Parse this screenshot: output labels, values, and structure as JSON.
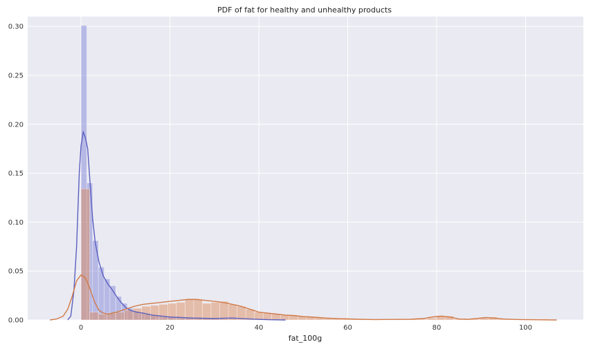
{
  "chart_data": {
    "type": "bar",
    "title": "PDF of fat for healthy and unhealthy products",
    "xlabel": "fat_100g",
    "ylabel": "",
    "xlim": [
      -12,
      113
    ],
    "ylim": [
      0,
      0.31
    ],
    "x_ticks": [
      0,
      20,
      40,
      60,
      80,
      100
    ],
    "y_ticks": [
      0.0,
      0.05,
      0.1,
      0.15,
      0.2,
      0.25,
      0.3
    ],
    "x_tick_labels": [
      "0",
      "20",
      "40",
      "60",
      "80",
      "100"
    ],
    "y_tick_labels": [
      "0.00",
      "0.05",
      "0.10",
      "0.15",
      "0.20",
      "0.25",
      "0.30"
    ],
    "grid": true,
    "background": "#eaeaf2",
    "series": [
      {
        "color": "#7b7fd4",
        "line_color": "#5a5fbf",
        "bin_width": 1.3,
        "hist": [
          [
            0,
            0.301
          ],
          [
            1.3,
            0.14
          ],
          [
            2.6,
            0.081
          ],
          [
            3.9,
            0.054
          ],
          [
            5.2,
            0.042
          ],
          [
            6.5,
            0.035
          ],
          [
            7.8,
            0.024
          ],
          [
            9.1,
            0.017
          ],
          [
            10.4,
            0.012
          ],
          [
            11.7,
            0.009
          ],
          [
            13.0,
            0.007
          ],
          [
            14.3,
            0.006
          ],
          [
            15.6,
            0.005
          ],
          [
            16.9,
            0.004
          ],
          [
            18.2,
            0.003
          ],
          [
            19.5,
            0.003
          ],
          [
            20.8,
            0.003
          ],
          [
            22.1,
            0.002
          ],
          [
            23.4,
            0.002
          ],
          [
            24.7,
            0.002
          ],
          [
            26.0,
            0.002
          ],
          [
            27.3,
            0.002
          ],
          [
            28.6,
            0.002
          ],
          [
            29.9,
            0.001
          ],
          [
            31.2,
            0.001
          ],
          [
            32.5,
            0.001
          ],
          [
            33.8,
            0.001
          ]
        ],
        "kde": [
          [
            -3,
            0.0
          ],
          [
            -2.3,
            0.004
          ],
          [
            -1.6,
            0.03
          ],
          [
            -1.0,
            0.075
          ],
          [
            -0.4,
            0.15
          ],
          [
            0,
            0.178
          ],
          [
            0.5,
            0.192
          ],
          [
            1.0,
            0.186
          ],
          [
            1.5,
            0.175
          ],
          [
            2.0,
            0.142
          ],
          [
            2.6,
            0.104
          ],
          [
            3.2,
            0.079
          ],
          [
            4.0,
            0.06
          ],
          [
            5.0,
            0.045
          ],
          [
            6.0,
            0.037
          ],
          [
            7.0,
            0.031
          ],
          [
            8.0,
            0.024
          ],
          [
            9.0,
            0.018
          ],
          [
            10.0,
            0.013
          ],
          [
            11.0,
            0.01
          ],
          [
            12.5,
            0.008
          ],
          [
            14.0,
            0.007
          ],
          [
            16.0,
            0.005
          ],
          [
            18.0,
            0.004
          ],
          [
            20.0,
            0.003
          ],
          [
            25.0,
            0.002
          ],
          [
            30.0,
            0.0015
          ],
          [
            34.0,
            0.002
          ],
          [
            38.0,
            0.001
          ],
          [
            42.0,
            0.0003
          ],
          [
            46.0,
            0.0
          ]
        ]
      },
      {
        "color": "#dd8452",
        "line_color": "#d07a48",
        "bin_width": 1.95,
        "hist": [
          [
            0,
            0.134
          ],
          [
            1.95,
            0.008
          ],
          [
            3.9,
            0.006
          ],
          [
            5.85,
            0.007
          ],
          [
            7.8,
            0.008
          ],
          [
            9.75,
            0.01
          ],
          [
            11.7,
            0.012
          ],
          [
            13.65,
            0.014
          ],
          [
            15.6,
            0.015
          ],
          [
            17.55,
            0.016
          ],
          [
            19.5,
            0.017
          ],
          [
            21.45,
            0.018
          ],
          [
            23.4,
            0.021
          ],
          [
            25.35,
            0.021
          ],
          [
            27.3,
            0.017
          ],
          [
            29.25,
            0.018
          ],
          [
            31.2,
            0.019
          ],
          [
            33.15,
            0.016
          ],
          [
            35.1,
            0.014
          ],
          [
            37.05,
            0.011
          ],
          [
            39.0,
            0.008
          ],
          [
            40.95,
            0.007
          ],
          [
            42.9,
            0.006
          ],
          [
            44.85,
            0.005
          ],
          [
            46.8,
            0.005
          ],
          [
            48.75,
            0.004
          ],
          [
            50.7,
            0.003
          ],
          [
            52.65,
            0.003
          ],
          [
            54.6,
            0.002
          ],
          [
            56.55,
            0.002
          ],
          [
            58.5,
            0.002
          ],
          [
            60.45,
            0.001
          ],
          [
            62.4,
            0.001
          ],
          [
            64.35,
            0.001
          ],
          [
            66.3,
            0.001
          ],
          [
            68.25,
            0.001
          ],
          [
            70.2,
            0.001
          ],
          [
            72.15,
            0.001
          ],
          [
            74.1,
            0.001
          ],
          [
            76.05,
            0.001
          ],
          [
            78.0,
            0.002
          ],
          [
            79.95,
            0.004
          ],
          [
            81.9,
            0.004
          ],
          [
            83.85,
            0.001
          ],
          [
            85.8,
            0.001
          ],
          [
            87.75,
            0.001
          ],
          [
            89.7,
            0.002
          ],
          [
            91.65,
            0.003
          ],
          [
            93.6,
            0.001
          ],
          [
            95.55,
            0.001
          ],
          [
            97.5,
            0.001
          ],
          [
            99.45,
            0.001
          ],
          [
            101.4,
            0.001
          ],
          [
            103.35,
            0.001
          ]
        ],
        "kde": [
          [
            -7,
            0.0
          ],
          [
            -5.5,
            0.001
          ],
          [
            -4,
            0.004
          ],
          [
            -3,
            0.011
          ],
          [
            -2,
            0.024
          ],
          [
            -1,
            0.04
          ],
          [
            0,
            0.046
          ],
          [
            1,
            0.043
          ],
          [
            2,
            0.032
          ],
          [
            3,
            0.019
          ],
          [
            4,
            0.01
          ],
          [
            5,
            0.007
          ],
          [
            6,
            0.006
          ],
          [
            7,
            0.007
          ],
          [
            8,
            0.008
          ],
          [
            10,
            0.011
          ],
          [
            12,
            0.014
          ],
          [
            14,
            0.016
          ],
          [
            16,
            0.017
          ],
          [
            18,
            0.018
          ],
          [
            20,
            0.019
          ],
          [
            22,
            0.02
          ],
          [
            24,
            0.021
          ],
          [
            26,
            0.021
          ],
          [
            28,
            0.02
          ],
          [
            30,
            0.019
          ],
          [
            32,
            0.018
          ],
          [
            34,
            0.016
          ],
          [
            36,
            0.014
          ],
          [
            38,
            0.011
          ],
          [
            40,
            0.008
          ],
          [
            42,
            0.007
          ],
          [
            44,
            0.006
          ],
          [
            46,
            0.005
          ],
          [
            48,
            0.0045
          ],
          [
            50,
            0.0035
          ],
          [
            52,
            0.003
          ],
          [
            55,
            0.002
          ],
          [
            58,
            0.0014
          ],
          [
            62,
            0.0008
          ],
          [
            66,
            0.0004
          ],
          [
            70,
            0.0006
          ],
          [
            74,
            0.0007
          ],
          [
            77,
            0.0015
          ],
          [
            79,
            0.003
          ],
          [
            81,
            0.004
          ],
          [
            83,
            0.003
          ],
          [
            85,
            0.001
          ],
          [
            87,
            0.0007
          ],
          [
            89,
            0.0015
          ],
          [
            91,
            0.0025
          ],
          [
            93,
            0.002
          ],
          [
            95,
            0.001
          ],
          [
            98,
            0.0005
          ],
          [
            101,
            0.0003
          ],
          [
            104,
            0.0001
          ],
          [
            107,
            0.0
          ]
        ]
      }
    ]
  }
}
